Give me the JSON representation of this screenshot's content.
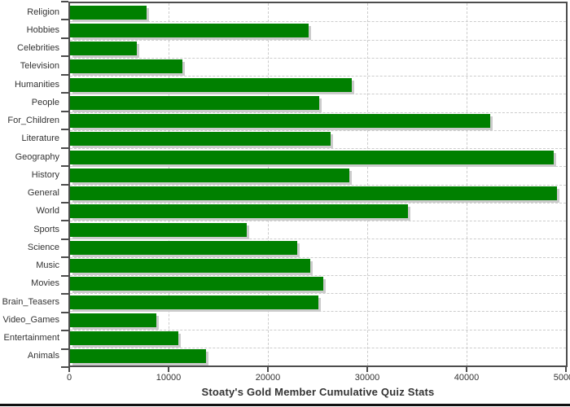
{
  "chart_data": {
    "type": "bar",
    "orientation": "horizontal",
    "title": "Stoaty's Gold Member Cumulative Quiz Stats",
    "categories": [
      "Religion",
      "Hobbies",
      "Celebrities",
      "Television",
      "Humanities",
      "People",
      "For_Children",
      "Literature",
      "Geography",
      "History",
      "General",
      "World",
      "Sports",
      "Science",
      "Music",
      "Movies",
      "Brain_Teasers",
      "Video_Games",
      "Entertainment",
      "Animals"
    ],
    "values": [
      7700,
      24000,
      6700,
      11300,
      28400,
      25100,
      42300,
      26200,
      48700,
      28100,
      49000,
      34000,
      17800,
      22900,
      24200,
      25500,
      25000,
      8700,
      10900,
      13700
    ],
    "xlabel": "",
    "ylabel": "",
    "xlim": [
      0,
      50000
    ],
    "x_ticks": [
      0,
      10000,
      20000,
      30000,
      40000,
      50000
    ],
    "x_tick_labels": [
      "0",
      "10000",
      "20000",
      "30000",
      "40000",
      "50000"
    ],
    "grid": "dashed, vertical at every 10000 and horizontal at every category boundary",
    "legend": "none",
    "colors": {
      "bar": "#008000",
      "bar_shadow": "#cccccc",
      "gridline": "#cccccc",
      "axis": "#4d4d4d",
      "text": "#333333",
      "bottom_rule": "#111111"
    }
  }
}
